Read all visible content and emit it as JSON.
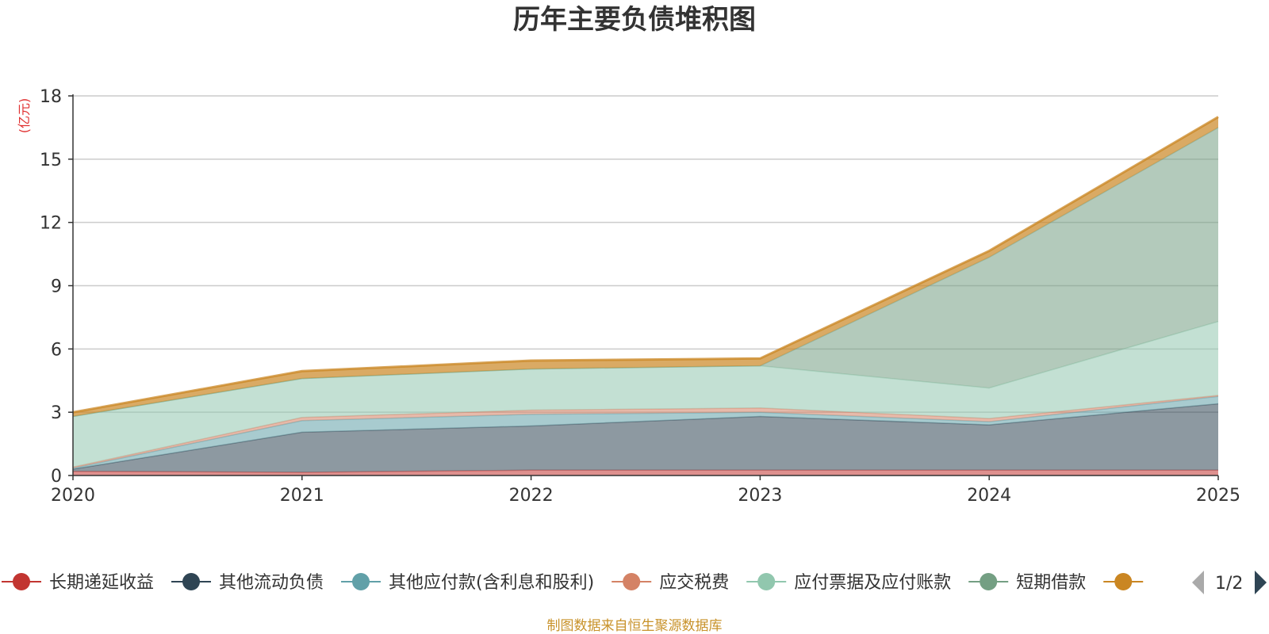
{
  "chart_data": {
    "type": "area",
    "stacked": true,
    "title": "历年主要负债堆积图",
    "unit_label": "(亿元)",
    "categories": [
      "2020",
      "2021",
      "2022",
      "2023",
      "2024",
      "2025"
    ],
    "ylim": [
      0,
      18
    ],
    "yticks": [
      "0",
      "3",
      "6",
      "9",
      "12",
      "15",
      "18"
    ],
    "grid": true,
    "series": [
      {
        "name": "长期递延收益",
        "color": "#c23531",
        "values": [
          0.2,
          0.15,
          0.25,
          0.25,
          0.25,
          0.25
        ]
      },
      {
        "name": "其他流动负债",
        "color": "#2f4554",
        "values": [
          0.1,
          1.9,
          2.1,
          2.55,
          2.15,
          3.15
        ]
      },
      {
        "name": "其他应付款(含利息和股利)",
        "color": "#61a0a8",
        "values": [
          0.05,
          0.55,
          0.55,
          0.2,
          0.15,
          0.35
        ]
      },
      {
        "name": "应交税费",
        "color": "#d48265",
        "values": [
          0.05,
          0.15,
          0.2,
          0.2,
          0.15,
          0.05
        ]
      },
      {
        "name": "应付票据及应付账款",
        "color": "#91c7ae",
        "values": [
          2.4,
          1.85,
          1.95,
          2.0,
          1.45,
          3.5
        ]
      },
      {
        "name": "短期借款",
        "color": "#749f83",
        "values": [
          0.0,
          0.0,
          0.0,
          0.0,
          6.2,
          9.2
        ]
      },
      {
        "name": "",
        "color": "#ca8622",
        "values": [
          0.2,
          0.35,
          0.4,
          0.35,
          0.3,
          0.5
        ]
      }
    ]
  },
  "legend": {
    "pager_text": "1/2"
  },
  "source_text": "制图数据来自恒生聚源数据库",
  "colors": {
    "unit": "#e03030",
    "source": "#c8922a",
    "grid": "#cccccc",
    "axis": "#333333",
    "pager_inactive": "#aaaaaa",
    "pager_active": "#2f4554"
  }
}
